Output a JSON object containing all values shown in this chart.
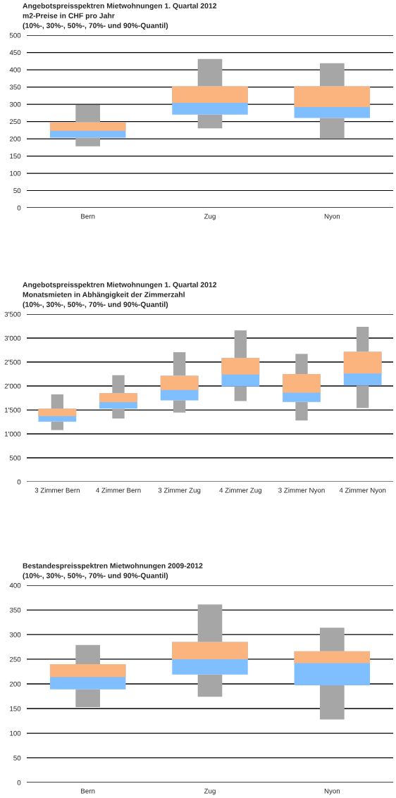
{
  "chart_data": [
    {
      "type": "box",
      "title": "Angebotspreisspektren Mietwohnungen 1. Quartal 2012",
      "subtitle": "m2-Preise in CHF pro Jahr",
      "annotations": [
        "(10%-, 30%-, 50%-, 70%- und 90%-Quantil)"
      ],
      "categories": [
        "Bern",
        "Zug",
        "Nyon"
      ],
      "series": [
        {
          "color": "#80bfff",
          "boxes": [
            {
              "low": 178,
              "q1": 203,
              "median": 223,
              "q3": 248,
              "high": 298
            },
            {
              "low": 230,
              "q1": 270,
              "median": 304,
              "q3": 352,
              "high": 431
            },
            {
              "low": 201,
              "q1": 260,
              "median": 292,
              "q3": 352,
              "high": 419
            }
          ]
        }
      ],
      "ylim": [
        0,
        500
      ],
      "yticks": [
        0,
        50,
        100,
        150,
        200,
        250,
        300,
        350,
        400,
        450,
        500
      ],
      "grid": "y"
    },
    {
      "type": "box",
      "title": "Angebotspreisspektren Mietwohnungen 1. Quartal 2012",
      "subtitle": "Monatsmieten in Abhängigkeit der Zimmerzahl",
      "annotations": [
        "(10%-, 30%-, 50%-, 70%- und 90%-Quantil)"
      ],
      "categories": [
        "3 Zimmer Bern",
        "4 Zimmer Bern",
        "3 Zimmer Zug",
        "4 Zimmer Zug",
        "3 Zimmer Nyon",
        "4 Zimmer Nyon"
      ],
      "series": [
        {
          "color": "#80bfff",
          "boxes": [
            {
              "low": 1080,
              "q1": 1255,
              "median": 1370,
              "q3": 1525,
              "high": 1825
            },
            {
              "low": 1320,
              "q1": 1525,
              "median": 1660,
              "q3": 1850,
              "high": 2225
            },
            {
              "low": 1445,
              "q1": 1700,
              "median": 1915,
              "q3": 2215,
              "high": 2705
            },
            {
              "low": 1685,
              "q1": 1990,
              "median": 2240,
              "q3": 2585,
              "high": 3160
            },
            {
              "low": 1280,
              "q1": 1665,
              "median": 1860,
              "q3": 2250,
              "high": 2670
            },
            {
              "low": 1540,
              "q1": 2010,
              "median": 2260,
              "q3": 2715,
              "high": 3235
            }
          ]
        }
      ],
      "ylim": [
        0,
        3500
      ],
      "yticks": [
        0,
        500,
        {
          "value": 1000,
          "label": "1'000"
        },
        {
          "value": 1500,
          "label": "1'500"
        },
        {
          "value": 2000,
          "label": "2'000"
        },
        {
          "value": 2500,
          "label": "2'500"
        },
        {
          "value": 3000,
          "label": "3'000"
        },
        {
          "value": 3500,
          "label": "3'500"
        }
      ],
      "grid": "y"
    },
    {
      "type": "box",
      "title": "Bestandespreisspektren Mietwohnungen 2009-2012",
      "annotations": [
        "(10%-, 30%-, 50%-, 70%- und 90%-Quantil)"
      ],
      "categories": [
        "Bern",
        "Zug",
        "Nyon"
      ],
      "series": [
        {
          "color": "#80bfff",
          "boxes": [
            {
              "low": 153,
              "q1": 189,
              "median": 214,
              "q3": 240,
              "high": 279
            },
            {
              "low": 174,
              "q1": 219,
              "median": 250,
              "q3": 285,
              "high": 361
            },
            {
              "low": 128,
              "q1": 197,
              "median": 242,
              "q3": 266,
              "high": 314
            }
          ]
        }
      ],
      "ylim": [
        0,
        400
      ],
      "yticks": [
        0,
        50,
        100,
        150,
        200,
        250,
        300,
        350,
        400
      ],
      "grid": "y"
    }
  ]
}
